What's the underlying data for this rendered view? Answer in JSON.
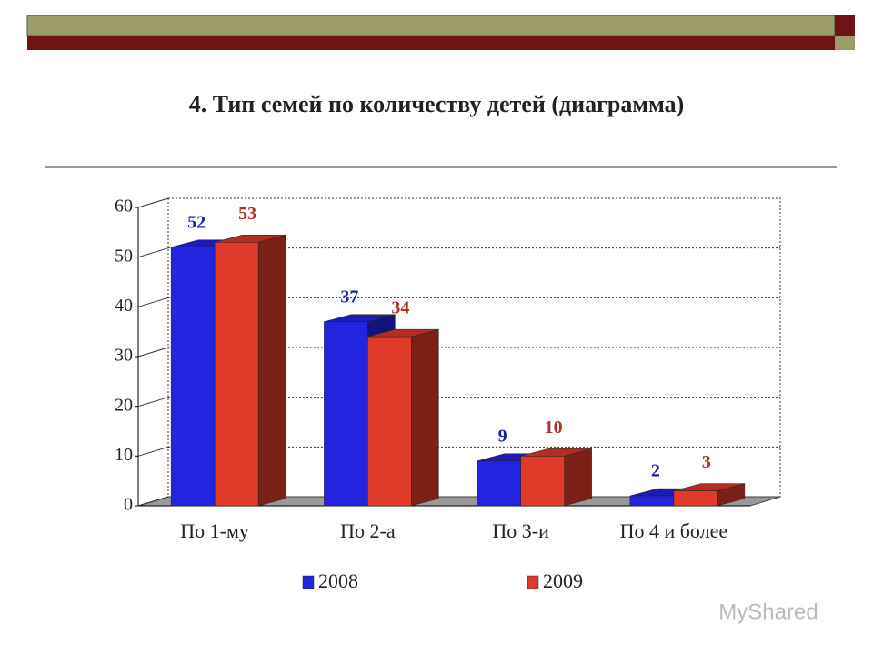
{
  "chart_data": {
    "type": "bar",
    "title": "4. Тип семей по количеству детей (диаграмма)",
    "categories": [
      "По 1-му",
      "По 2-а",
      "По 3-и",
      "По 4 и более"
    ],
    "series": [
      {
        "name": "2008",
        "color": "#2323e0",
        "values": [
          52,
          37,
          9,
          2
        ]
      },
      {
        "name": "2009",
        "color": "#e03a2a",
        "values": [
          53,
          34,
          10,
          3
        ]
      }
    ],
    "ylim": [
      0,
      60
    ],
    "yticks": [
      0,
      10,
      20,
      30,
      40,
      50,
      60
    ],
    "grid": true
  },
  "watermark": "MyShared"
}
